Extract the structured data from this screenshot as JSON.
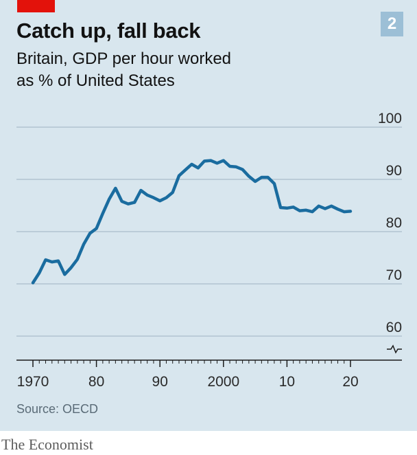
{
  "chart_number": "2",
  "source_text": "Source: OECD",
  "brand": "The Economist",
  "colors": {
    "background": "#d8e6ee",
    "line": "#1a6c9f",
    "gridline": "#9eb3c1",
    "axis": "#1a1a1a",
    "accent_tag": "#e3120b",
    "number_badge": "#9cbfd6"
  },
  "chart_data": {
    "type": "line",
    "title": "Catch up, fall back",
    "subtitle_lines": [
      "Britain, GDP per hour worked",
      "as % of United States"
    ],
    "xlabel": "",
    "ylabel": "",
    "xlim": [
      1970,
      2020
    ],
    "ylim": [
      60,
      100
    ],
    "y_axis_break": true,
    "y_ticks": [
      60,
      70,
      80,
      90,
      100
    ],
    "y_tick_labels": [
      "60",
      "70",
      "80",
      "90",
      "100"
    ],
    "x_ticks": [
      1970,
      1980,
      1990,
      2000,
      2010,
      2020
    ],
    "x_tick_labels": [
      "1970",
      "80",
      "90",
      "2000",
      "10",
      "20"
    ],
    "grid": true,
    "series": [
      {
        "x": [
          1970,
          1971,
          1972,
          1973,
          1974,
          1975,
          1976,
          1977,
          1978,
          1979,
          1980,
          1981,
          1982,
          1983,
          1984,
          1985,
          1986,
          1987,
          1988,
          1989,
          1990,
          1991,
          1992,
          1993,
          1994,
          1995,
          1996,
          1997,
          1998,
          1999,
          2000,
          2001,
          2002,
          2003,
          2004,
          2005,
          2006,
          2007,
          2008,
          2009,
          2010,
          2011,
          2012,
          2013,
          2014,
          2015,
          2016,
          2017,
          2018,
          2019,
          2020
        ],
        "values": [
          70.2,
          72.1,
          74.6,
          74.2,
          74.4,
          71.8,
          73.1,
          74.7,
          77.6,
          79.7,
          80.6,
          83.5,
          86.2,
          88.3,
          85.8,
          85.3,
          85.6,
          87.9,
          87.0,
          86.5,
          85.9,
          86.5,
          87.5,
          90.7,
          91.8,
          92.9,
          92.2,
          93.5,
          93.6,
          93.1,
          93.6,
          92.5,
          92.4,
          91.9,
          90.6,
          89.6,
          90.4,
          90.4,
          89.2,
          84.6,
          84.5,
          84.7,
          84.0,
          84.1,
          83.8,
          84.9,
          84.4,
          84.9,
          84.3,
          83.8,
          83.9
        ]
      }
    ]
  }
}
